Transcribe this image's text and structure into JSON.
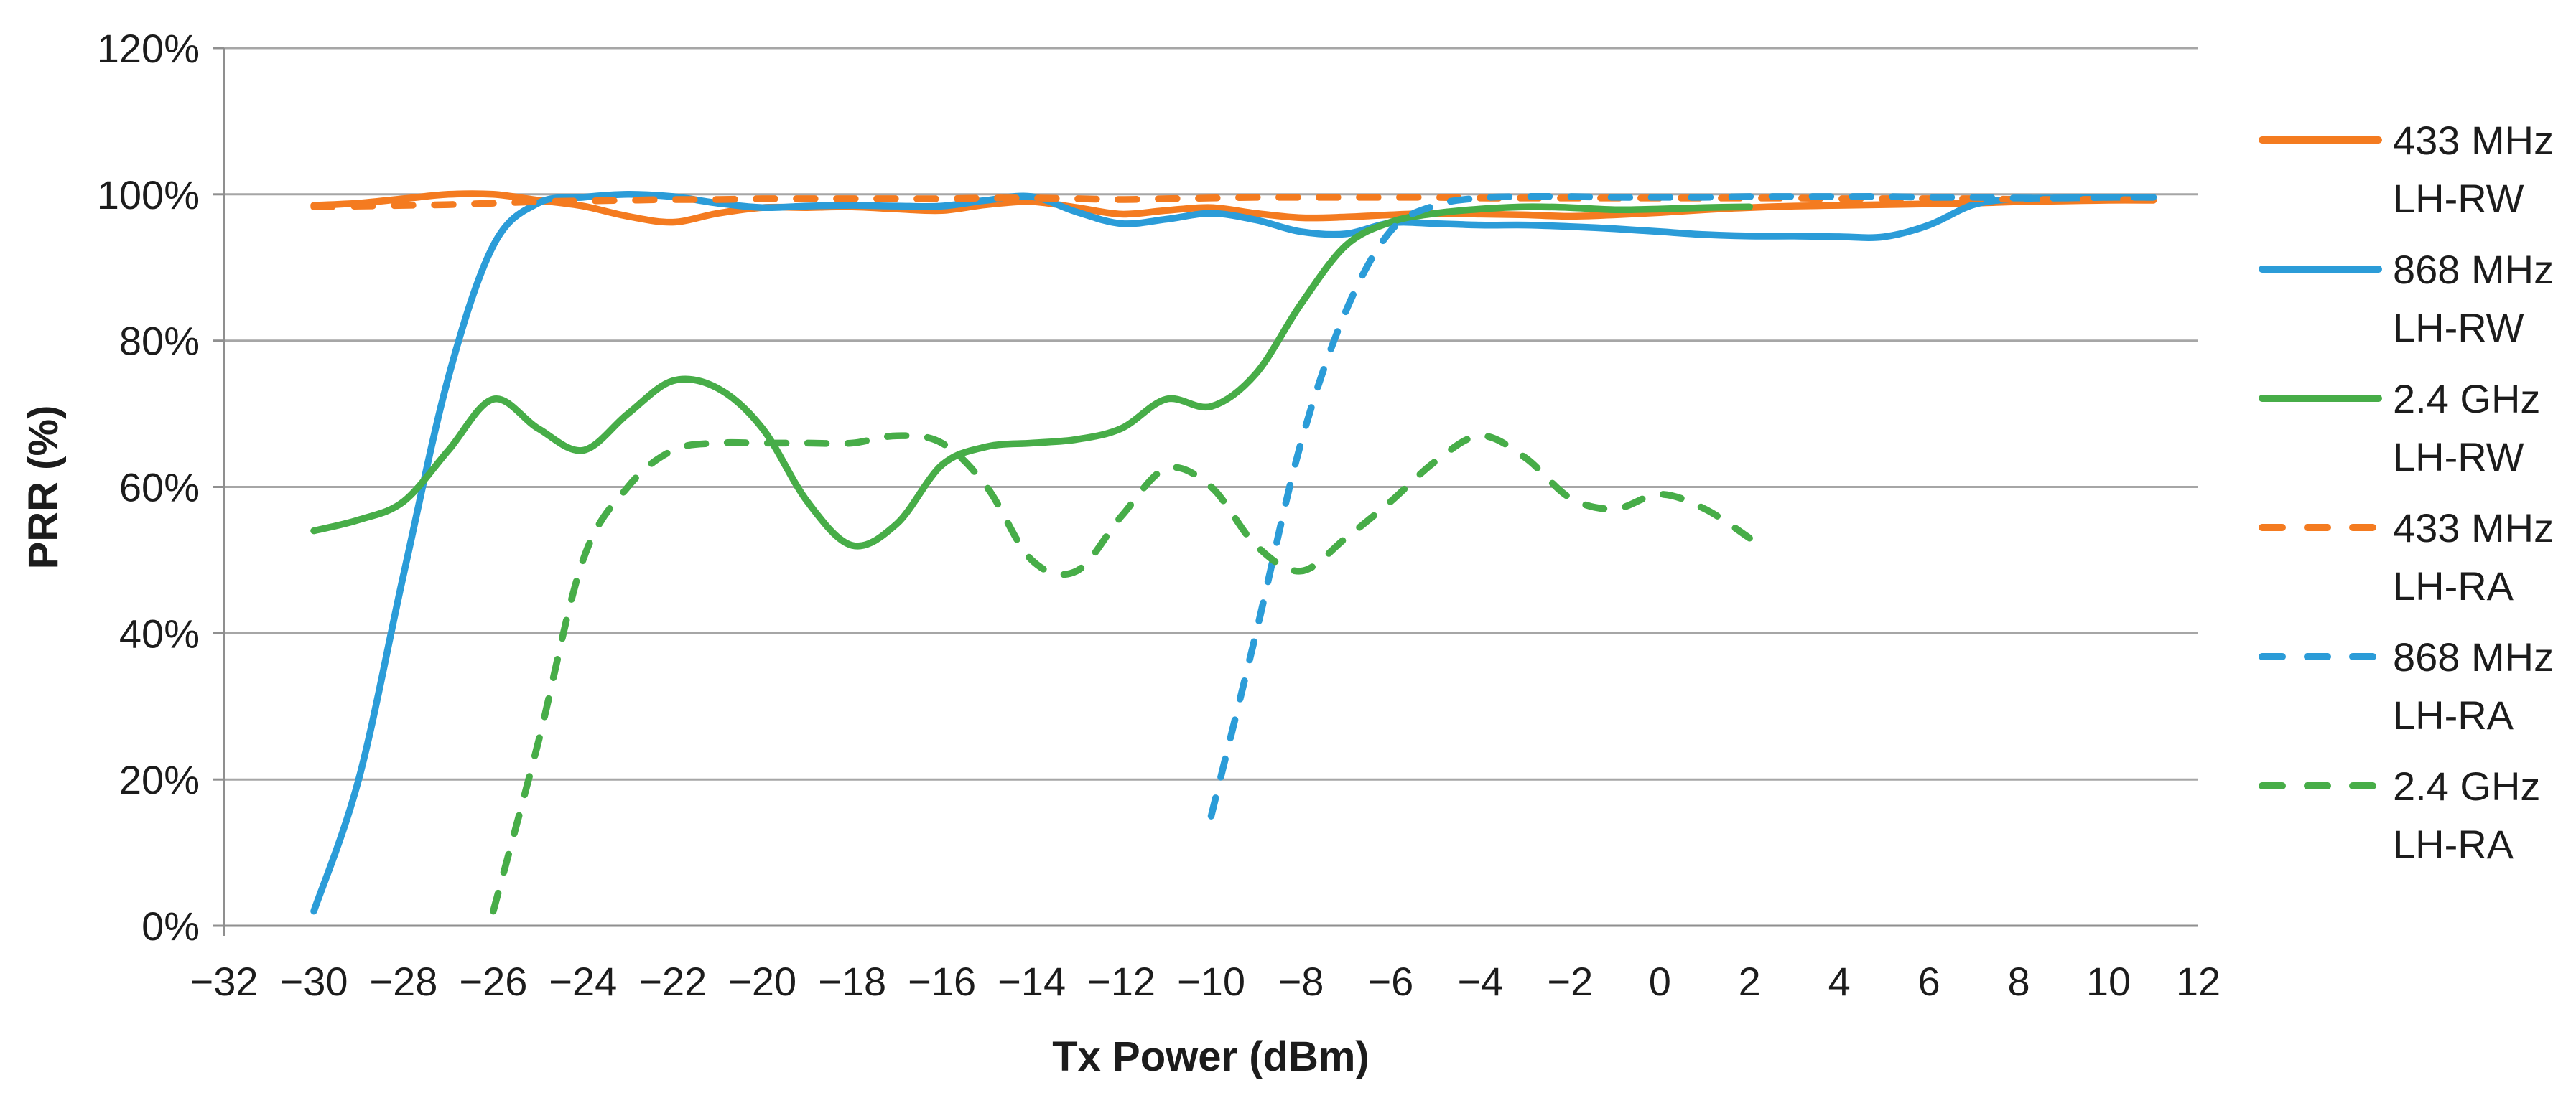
{
  "page": {
    "background": "#ffffff"
  },
  "chart_data": {
    "type": "line",
    "title": "",
    "xlabel": "Tx Power (dBm)",
    "ylabel": "PRR (%)",
    "xlim": [
      -32,
      12
    ],
    "ylim": [
      0,
      120
    ],
    "grid": true,
    "legend_position": "right",
    "colors": {
      "orange": "#f47b20",
      "blue": "#2b9cd8",
      "green": "#47ad48",
      "gridline": "#a6a6a6",
      "axis": "#8f8f8f",
      "text": "#1c1c1c"
    },
    "yticks": [
      {
        "label": "0%",
        "value": 0
      },
      {
        "label": "20%",
        "value": 20
      },
      {
        "label": "40%",
        "value": 40
      },
      {
        "label": "60%",
        "value": 60
      },
      {
        "label": "80%",
        "value": 80
      },
      {
        "label": "100%",
        "value": 100
      },
      {
        "label": "120%",
        "value": 120
      }
    ],
    "xticks": [
      {
        "label": "−32",
        "value": -32
      },
      {
        "label": "−30",
        "value": -30
      },
      {
        "label": "−28",
        "value": -28
      },
      {
        "label": "−26",
        "value": -26
      },
      {
        "label": "−24",
        "value": -24
      },
      {
        "label": "−22",
        "value": -22
      },
      {
        "label": "−20",
        "value": -20
      },
      {
        "label": "−18",
        "value": -18
      },
      {
        "label": "−16",
        "value": -16
      },
      {
        "label": "−14",
        "value": -14
      },
      {
        "label": "−12",
        "value": -12
      },
      {
        "label": "−10",
        "value": -10
      },
      {
        "label": "−8",
        "value": -8
      },
      {
        "label": "−6",
        "value": -6
      },
      {
        "label": "−4",
        "value": -4
      },
      {
        "label": "−2",
        "value": -2
      },
      {
        "label": "0",
        "value": 0
      },
      {
        "label": "2",
        "value": 2
      },
      {
        "label": "4",
        "value": 4
      },
      {
        "label": "6",
        "value": 6
      },
      {
        "label": "8",
        "value": 8
      },
      {
        "label": "10",
        "value": 10
      },
      {
        "label": "12",
        "value": 12
      }
    ],
    "series": [
      {
        "id": "433-mhz-lh-rw",
        "name": "433 MHz LH-RW",
        "legend_lines": [
          "433 MHz",
          "LH-RW"
        ],
        "color_key": "orange",
        "dashed": false,
        "x": [
          -30,
          -29,
          -28,
          -27,
          -26,
          -25,
          -24,
          -23,
          -22,
          -21,
          -20,
          -19,
          -18,
          -17,
          -16,
          -15,
          -14,
          -13,
          -12,
          -11,
          -10,
          -9,
          -8,
          -7,
          -6,
          -5,
          -4,
          -3,
          -2,
          -1,
          0,
          1,
          2,
          3,
          4,
          5,
          6,
          7,
          8,
          9,
          10,
          11
        ],
        "values": [
          98.5,
          98.8,
          99.4,
          100,
          100,
          99.2,
          98.4,
          97,
          96.2,
          97.4,
          98.2,
          98.2,
          98.3,
          98,
          97.8,
          98.6,
          99,
          98.2,
          97.3,
          97.8,
          98.2,
          97.4,
          96.8,
          96.9,
          97.2,
          97.4,
          97.3,
          97.2,
          97,
          97.2,
          97.5,
          97.9,
          98.2,
          98.4,
          98.5,
          98.6,
          98.7,
          98.8,
          99,
          99.1,
          99.2,
          99.2
        ]
      },
      {
        "id": "868-mhz-lh-rw",
        "name": "868 MHz LH-RW",
        "legend_lines": [
          "868 MHz",
          "LH-RW"
        ],
        "color_key": "blue",
        "dashed": false,
        "x": [
          -30,
          -29,
          -28,
          -27,
          -26,
          -25,
          -24,
          -23,
          -22,
          -21,
          -20,
          -19,
          -18,
          -17,
          -16,
          -15,
          -14,
          -13,
          -12,
          -11,
          -10,
          -9,
          -8,
          -7,
          -6,
          -5,
          -4,
          -3,
          -2,
          -1,
          0,
          1,
          2,
          3,
          4,
          5,
          6,
          7,
          8,
          9,
          10,
          11
        ],
        "values": [
          2,
          20,
          48,
          75,
          93,
          98.8,
          99.6,
          100,
          99.7,
          98.8,
          98.2,
          98.4,
          98.5,
          98.4,
          98.4,
          99.2,
          99.7,
          97.6,
          96,
          96.6,
          97.4,
          96.5,
          94.9,
          94.6,
          96.1,
          96,
          95.8,
          95.8,
          95.6,
          95.3,
          94.9,
          94.5,
          94.3,
          94.3,
          94.2,
          94.2,
          95.8,
          98.6,
          99.4,
          99.5,
          99.6,
          99.6
        ]
      },
      {
        "id": "24-ghz-lh-rw",
        "name": "2.4 GHz LH-RW",
        "legend_lines": [
          "2.4 GHz",
          "LH-RW"
        ],
        "color_key": "green",
        "dashed": false,
        "x": [
          -30,
          -29,
          -28,
          -27,
          -26,
          -25,
          -24,
          -23,
          -22,
          -21,
          -20,
          -19,
          -18,
          -17,
          -16,
          -15,
          -14,
          -13,
          -12,
          -11,
          -10,
          -9,
          -8,
          -7,
          -6,
          -5,
          -4,
          -3,
          -2,
          -1,
          0,
          1,
          2
        ],
        "values": [
          54,
          55.5,
          58,
          65,
          72,
          68,
          65,
          70,
          74.5,
          73.5,
          68,
          58,
          52,
          55,
          63,
          65.5,
          66,
          66.5,
          68,
          72,
          71,
          75.5,
          85,
          93,
          96.2,
          97.4,
          98,
          98.3,
          98.2,
          97.9,
          98,
          98.2,
          98.3
        ]
      },
      {
        "id": "433-mhz-lh-ra",
        "name": "433 MHz LH-RA",
        "legend_lines": [
          "433 MHz",
          "LH-RA"
        ],
        "color_key": "orange",
        "dashed": true,
        "x": [
          -30,
          -29,
          -28,
          -27,
          -26,
          -25,
          -24,
          -23,
          -22,
          -21,
          -20,
          -19,
          -18,
          -17,
          -16,
          -15,
          -14,
          -13,
          -12,
          -11,
          -10,
          -9,
          -8,
          -7,
          -6,
          -5,
          -4,
          -3,
          -2,
          -1,
          0,
          1,
          2,
          3,
          4,
          5,
          6,
          7,
          8,
          9,
          10,
          11
        ],
        "values": [
          98.3,
          98.4,
          98.5,
          98.6,
          98.8,
          99,
          99.1,
          99.2,
          99.3,
          99.3,
          99.4,
          99.4,
          99.4,
          99.4,
          99.4,
          99.5,
          99.5,
          99.4,
          99.3,
          99.4,
          99.5,
          99.6,
          99.6,
          99.6,
          99.6,
          99.6,
          99.5,
          99.5,
          99.5,
          99.5,
          99.5,
          99.5,
          99.5,
          99.5,
          99.4,
          99.4,
          99.4,
          99.4,
          99.3,
          99.3,
          99.3,
          99.2
        ]
      },
      {
        "id": "868-mhz-lh-ra",
        "name": "868 MHz LH-RA",
        "legend_lines": [
          "868 MHz",
          "LH-RA"
        ],
        "color_key": "blue",
        "dashed": true,
        "x": [
          -10,
          -9,
          -8,
          -7,
          -6,
          -5,
          -4,
          -3,
          -2,
          -1,
          0,
          1,
          2,
          3,
          4,
          5,
          6,
          7,
          8,
          9,
          10,
          11
        ],
        "values": [
          15,
          40,
          66,
          84,
          95,
          98.5,
          99.5,
          99.7,
          99.7,
          99.6,
          99.6,
          99.6,
          99.7,
          99.7,
          99.7,
          99.7,
          99.6,
          99.6,
          99.5,
          99.5,
          99.6,
          99.6
        ]
      },
      {
        "id": "24-ghz-lh-ra",
        "name": "2.4 GHz LH-RA",
        "legend_lines": [
          "2.4 GHz",
          "LH-RA"
        ],
        "color_key": "green",
        "dashed": true,
        "x": [
          -26,
          -25,
          -24,
          -23,
          -22,
          -21,
          -20,
          -19,
          -18,
          -17,
          -16,
          -15,
          -14,
          -13,
          -12,
          -11,
          -10,
          -9,
          -8,
          -7,
          -6,
          -5,
          -4,
          -3,
          -2,
          -1,
          0,
          1,
          2
        ],
        "values": [
          2,
          25,
          50,
          60,
          65,
          66,
          66,
          66,
          66,
          67,
          66,
          60,
          50,
          48.5,
          56,
          62.5,
          60,
          52,
          48.5,
          53,
          58,
          63.5,
          67,
          64,
          58.5,
          57,
          59,
          57,
          53
        ]
      }
    ]
  }
}
